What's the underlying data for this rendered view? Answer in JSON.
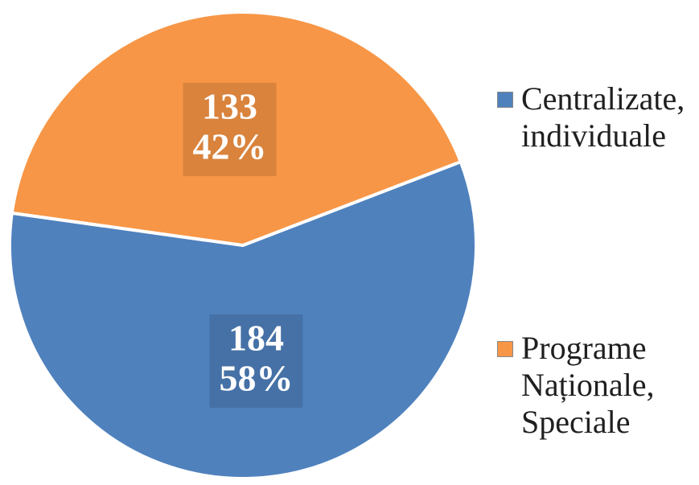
{
  "chart_data": {
    "type": "pie",
    "categories": [
      "Centralizate, individuale",
      "Programe Naționale, Speciale"
    ],
    "values": [
      184,
      133
    ],
    "percents": [
      58,
      42
    ],
    "percent_labels": [
      "58%",
      "42%"
    ],
    "colors": [
      "#4f81bd",
      "#f79646"
    ],
    "legend": "right"
  }
}
